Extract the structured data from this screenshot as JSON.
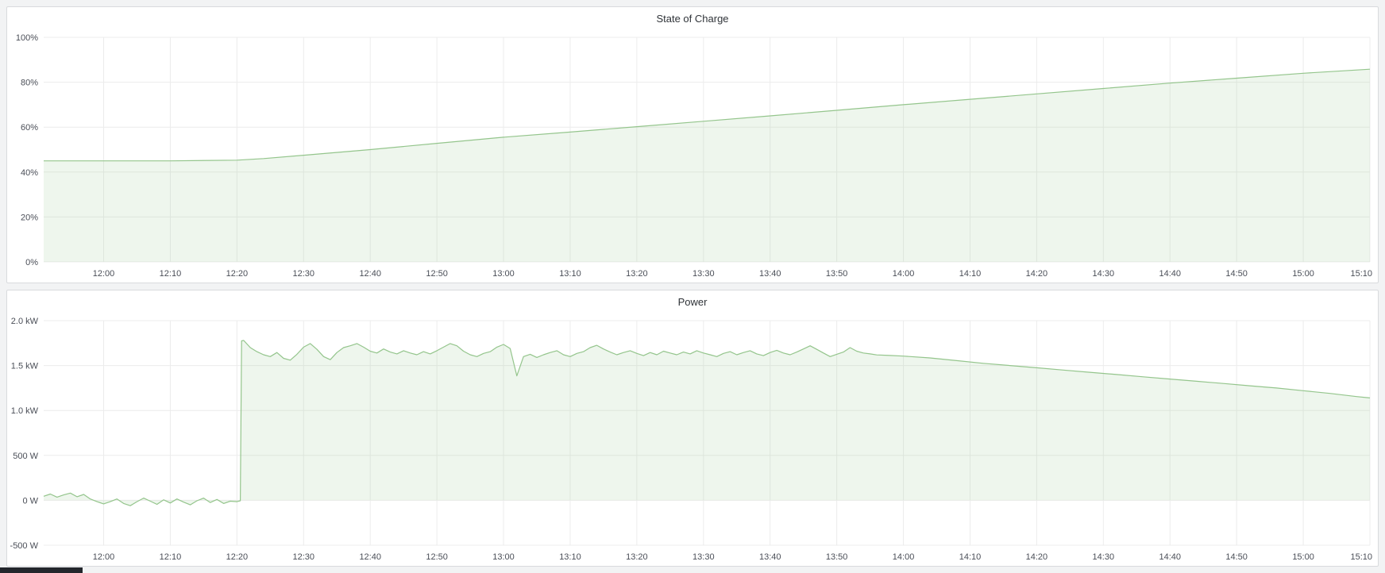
{
  "page": {
    "background": "#f2f3f4",
    "panel_background": "#ffffff",
    "panel_border": "#d8dadd",
    "grid_color": "#ececec"
  },
  "chart_data": [
    {
      "type": "area",
      "title": "State of Charge",
      "xlabel": "",
      "ylabel": "",
      "x_unit": "time of day (minutes since midnight)",
      "y_unit": "percent",
      "x_range": [
        711,
        910
      ],
      "y_range": [
        0,
        100
      ],
      "baseline": 0,
      "grid": true,
      "legend": "none",
      "line_color": "#94c58c",
      "fill_color": "rgba(148,197,140,0.16)",
      "grid_color": "#ececec",
      "x_ticks": [
        {
          "v": 720,
          "label": "12:00"
        },
        {
          "v": 730,
          "label": "12:10"
        },
        {
          "v": 740,
          "label": "12:20"
        },
        {
          "v": 750,
          "label": "12:30"
        },
        {
          "v": 760,
          "label": "12:40"
        },
        {
          "v": 770,
          "label": "12:50"
        },
        {
          "v": 780,
          "label": "13:00"
        },
        {
          "v": 790,
          "label": "13:10"
        },
        {
          "v": 800,
          "label": "13:20"
        },
        {
          "v": 810,
          "label": "13:30"
        },
        {
          "v": 820,
          "label": "13:40"
        },
        {
          "v": 830,
          "label": "13:50"
        },
        {
          "v": 840,
          "label": "14:00"
        },
        {
          "v": 850,
          "label": "14:10"
        },
        {
          "v": 860,
          "label": "14:20"
        },
        {
          "v": 870,
          "label": "14:30"
        },
        {
          "v": 880,
          "label": "14:40"
        },
        {
          "v": 890,
          "label": "14:50"
        },
        {
          "v": 900,
          "label": "15:00"
        },
        {
          "v": 910,
          "label": "15:10"
        }
      ],
      "y_ticks": [
        {
          "v": 0,
          "label": "0%"
        },
        {
          "v": 20,
          "label": "20%"
        },
        {
          "v": 40,
          "label": "40%"
        },
        {
          "v": 60,
          "label": "60%"
        },
        {
          "v": 80,
          "label": "80%"
        },
        {
          "v": 100,
          "label": "100%"
        }
      ],
      "points": [
        [
          711,
          45
        ],
        [
          720,
          45
        ],
        [
          730,
          45
        ],
        [
          740,
          45.3
        ],
        [
          744,
          46
        ],
        [
          750,
          47.5
        ],
        [
          760,
          50
        ],
        [
          770,
          52.8
        ],
        [
          780,
          55.5
        ],
        [
          790,
          57.8
        ],
        [
          800,
          60.2
        ],
        [
          810,
          62.6
        ],
        [
          820,
          65
        ],
        [
          830,
          67.5
        ],
        [
          840,
          70
        ],
        [
          850,
          72.4
        ],
        [
          860,
          74.8
        ],
        [
          870,
          77.2
        ],
        [
          880,
          79.6
        ],
        [
          890,
          81.8
        ],
        [
          900,
          84
        ],
        [
          910,
          85.8
        ]
      ]
    },
    {
      "type": "area",
      "title": "Power",
      "xlabel": "",
      "ylabel": "",
      "x_unit": "time of day (minutes since midnight)",
      "y_unit": "watts",
      "x_range": [
        711,
        910
      ],
      "y_range": [
        -500,
        2000
      ],
      "baseline": 0,
      "grid": true,
      "legend": "none",
      "line_color": "#94c58c",
      "fill_color": "rgba(148,197,140,0.16)",
      "grid_color": "#ececec",
      "x_ticks": [
        {
          "v": 720,
          "label": "12:00"
        },
        {
          "v": 730,
          "label": "12:10"
        },
        {
          "v": 740,
          "label": "12:20"
        },
        {
          "v": 750,
          "label": "12:30"
        },
        {
          "v": 760,
          "label": "12:40"
        },
        {
          "v": 770,
          "label": "12:50"
        },
        {
          "v": 780,
          "label": "13:00"
        },
        {
          "v": 790,
          "label": "13:10"
        },
        {
          "v": 800,
          "label": "13:20"
        },
        {
          "v": 810,
          "label": "13:30"
        },
        {
          "v": 820,
          "label": "13:40"
        },
        {
          "v": 830,
          "label": "13:50"
        },
        {
          "v": 840,
          "label": "14:00"
        },
        {
          "v": 850,
          "label": "14:10"
        },
        {
          "v": 860,
          "label": "14:20"
        },
        {
          "v": 870,
          "label": "14:30"
        },
        {
          "v": 880,
          "label": "14:40"
        },
        {
          "v": 890,
          "label": "14:50"
        },
        {
          "v": 900,
          "label": "15:00"
        },
        {
          "v": 910,
          "label": "15:10"
        }
      ],
      "y_ticks": [
        {
          "v": -500,
          "label": "-500 W"
        },
        {
          "v": 0,
          "label": "0 W"
        },
        {
          "v": 500,
          "label": "500 W"
        },
        {
          "v": 1000,
          "label": "1.0 kW"
        },
        {
          "v": 1500,
          "label": "1.5 kW"
        },
        {
          "v": 2000,
          "label": "2.0 kW"
        }
      ],
      "points": [
        [
          711,
          45
        ],
        [
          712,
          70
        ],
        [
          713,
          35
        ],
        [
          714,
          60
        ],
        [
          715,
          80
        ],
        [
          716,
          40
        ],
        [
          717,
          65
        ],
        [
          718,
          15
        ],
        [
          719,
          -15
        ],
        [
          720,
          -40
        ],
        [
          721,
          -15
        ],
        [
          722,
          15
        ],
        [
          723,
          -35
        ],
        [
          724,
          -60
        ],
        [
          725,
          -15
        ],
        [
          726,
          25
        ],
        [
          727,
          -10
        ],
        [
          728,
          -45
        ],
        [
          729,
          5
        ],
        [
          730,
          -30
        ],
        [
          731,
          15
        ],
        [
          732,
          -20
        ],
        [
          733,
          -50
        ],
        [
          734,
          -5
        ],
        [
          735,
          25
        ],
        [
          736,
          -25
        ],
        [
          737,
          10
        ],
        [
          738,
          -35
        ],
        [
          739,
          -10
        ],
        [
          740,
          -15
        ],
        [
          740.5,
          -5
        ],
        [
          740.7,
          1775
        ],
        [
          741,
          1780
        ],
        [
          742,
          1700
        ],
        [
          743,
          1655
        ],
        [
          744,
          1620
        ],
        [
          745,
          1600
        ],
        [
          746,
          1645
        ],
        [
          747,
          1580
        ],
        [
          748,
          1560
        ],
        [
          749,
          1625
        ],
        [
          750,
          1705
        ],
        [
          751,
          1745
        ],
        [
          752,
          1680
        ],
        [
          753,
          1600
        ],
        [
          754,
          1565
        ],
        [
          755,
          1645
        ],
        [
          756,
          1700
        ],
        [
          757,
          1720
        ],
        [
          758,
          1745
        ],
        [
          759,
          1705
        ],
        [
          760,
          1660
        ],
        [
          761,
          1640
        ],
        [
          762,
          1685
        ],
        [
          763,
          1650
        ],
        [
          764,
          1630
        ],
        [
          765,
          1665
        ],
        [
          766,
          1640
        ],
        [
          767,
          1620
        ],
        [
          768,
          1655
        ],
        [
          769,
          1630
        ],
        [
          770,
          1665
        ],
        [
          771,
          1705
        ],
        [
          772,
          1745
        ],
        [
          773,
          1720
        ],
        [
          774,
          1660
        ],
        [
          775,
          1620
        ],
        [
          776,
          1600
        ],
        [
          777,
          1635
        ],
        [
          778,
          1655
        ],
        [
          779,
          1705
        ],
        [
          780,
          1735
        ],
        [
          781,
          1690
        ],
        [
          782,
          1385
        ],
        [
          783,
          1600
        ],
        [
          784,
          1625
        ],
        [
          785,
          1590
        ],
        [
          786,
          1620
        ],
        [
          787,
          1645
        ],
        [
          788,
          1665
        ],
        [
          789,
          1620
        ],
        [
          790,
          1600
        ],
        [
          791,
          1635
        ],
        [
          792,
          1655
        ],
        [
          793,
          1700
        ],
        [
          794,
          1725
        ],
        [
          795,
          1685
        ],
        [
          796,
          1650
        ],
        [
          797,
          1620
        ],
        [
          798,
          1645
        ],
        [
          799,
          1665
        ],
        [
          800,
          1635
        ],
        [
          801,
          1610
        ],
        [
          802,
          1645
        ],
        [
          803,
          1620
        ],
        [
          804,
          1660
        ],
        [
          805,
          1640
        ],
        [
          806,
          1620
        ],
        [
          807,
          1650
        ],
        [
          808,
          1630
        ],
        [
          809,
          1665
        ],
        [
          810,
          1640
        ],
        [
          811,
          1620
        ],
        [
          812,
          1600
        ],
        [
          813,
          1635
        ],
        [
          814,
          1655
        ],
        [
          815,
          1620
        ],
        [
          816,
          1645
        ],
        [
          817,
          1665
        ],
        [
          818,
          1630
        ],
        [
          819,
          1610
        ],
        [
          820,
          1645
        ],
        [
          821,
          1670
        ],
        [
          822,
          1640
        ],
        [
          823,
          1620
        ],
        [
          824,
          1650
        ],
        [
          825,
          1685
        ],
        [
          826,
          1720
        ],
        [
          827,
          1680
        ],
        [
          828,
          1640
        ],
        [
          829,
          1600
        ],
        [
          830,
          1625
        ],
        [
          831,
          1650
        ],
        [
          832,
          1700
        ],
        [
          833,
          1660
        ],
        [
          834,
          1640
        ],
        [
          835,
          1630
        ],
        [
          836,
          1618
        ],
        [
          838,
          1612
        ],
        [
          840,
          1605
        ],
        [
          844,
          1585
        ],
        [
          848,
          1555
        ],
        [
          852,
          1525
        ],
        [
          856,
          1500
        ],
        [
          860,
          1475
        ],
        [
          864,
          1450
        ],
        [
          868,
          1425
        ],
        [
          872,
          1400
        ],
        [
          876,
          1375
        ],
        [
          880,
          1350
        ],
        [
          884,
          1325
        ],
        [
          888,
          1300
        ],
        [
          892,
          1275
        ],
        [
          896,
          1250
        ],
        [
          900,
          1220
        ],
        [
          904,
          1190
        ],
        [
          908,
          1155
        ],
        [
          910,
          1140
        ]
      ]
    }
  ]
}
